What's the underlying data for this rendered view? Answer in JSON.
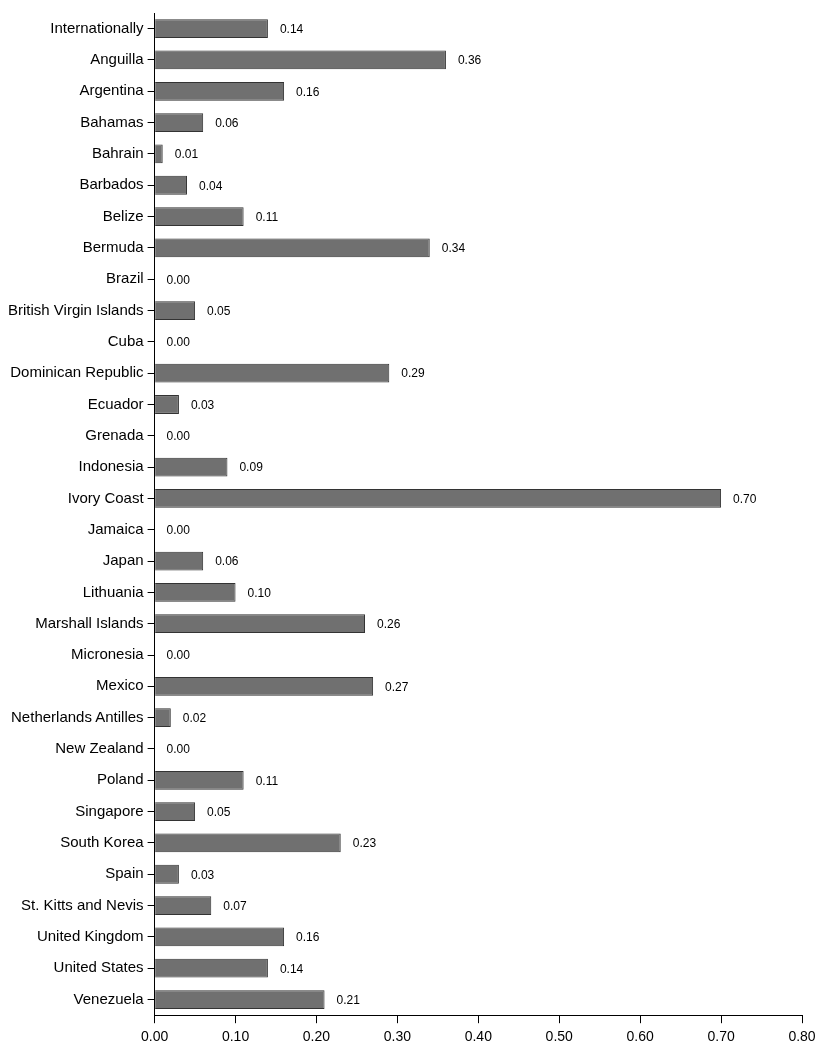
{
  "chart_data": {
    "type": "bar",
    "orientation": "horizontal",
    "categories": [
      "Internationally",
      "Anguilla",
      "Argentina",
      "Bahamas",
      "Bahrain",
      "Barbados",
      "Belize",
      "Bermuda",
      "Brazil",
      "British Virgin Islands",
      "Cuba",
      "Dominican Republic",
      "Ecuador",
      "Grenada",
      "Indonesia",
      "Ivory Coast",
      "Jamaica",
      "Japan",
      "Lithuania",
      "Marshall Islands",
      "Micronesia",
      "Mexico",
      "Netherlands Antilles",
      "New Zealand",
      "Poland",
      "Singapore",
      "South Korea",
      "Spain",
      "St. Kitts and Nevis",
      "United Kingdom",
      "United States",
      "Venezuela"
    ],
    "values": [
      0.14,
      0.36,
      0.16,
      0.06,
      0.01,
      0.04,
      0.11,
      0.34,
      0.0,
      0.05,
      0.0,
      0.29,
      0.03,
      0.0,
      0.09,
      0.7,
      0.0,
      0.06,
      0.1,
      0.26,
      0.0,
      0.27,
      0.02,
      0.0,
      0.11,
      0.05,
      0.23,
      0.03,
      0.07,
      0.16,
      0.14,
      0.21
    ],
    "color": "#707070",
    "xlim": [
      0,
      0.8
    ],
    "xticks": [
      {
        "value": 0,
        "label": "0.00"
      },
      {
        "value": 0.1,
        "label": "0.10"
      },
      {
        "value": 0.2,
        "label": "0.20"
      },
      {
        "value": 0.3,
        "label": "0.30"
      },
      {
        "value": 0.4,
        "label": "0.40"
      },
      {
        "value": 0.5,
        "label": "0.50"
      },
      {
        "value": 0.6,
        "label": "0.60"
      },
      {
        "value": 0.7,
        "label": "0.70"
      },
      {
        "value": 0.8,
        "label": "0.80"
      }
    ],
    "value_labels": [
      "0.14",
      "0.36",
      "0.16",
      "0.06",
      "0.01",
      "0.04",
      "0.11",
      "0.34",
      "0.00",
      "0.05",
      "0.00",
      "0.29",
      "0.03",
      "0.00",
      "0.09",
      "0.70",
      "0.00",
      "0.06",
      "0.10",
      "0.26",
      "0.00",
      "0.27",
      "0.02",
      "0.00",
      "0.11",
      "0.05",
      "0.23",
      "0.03",
      "0.07",
      "0.16",
      "0.14",
      "0.21"
    ],
    "grid": false,
    "legend": false
  }
}
